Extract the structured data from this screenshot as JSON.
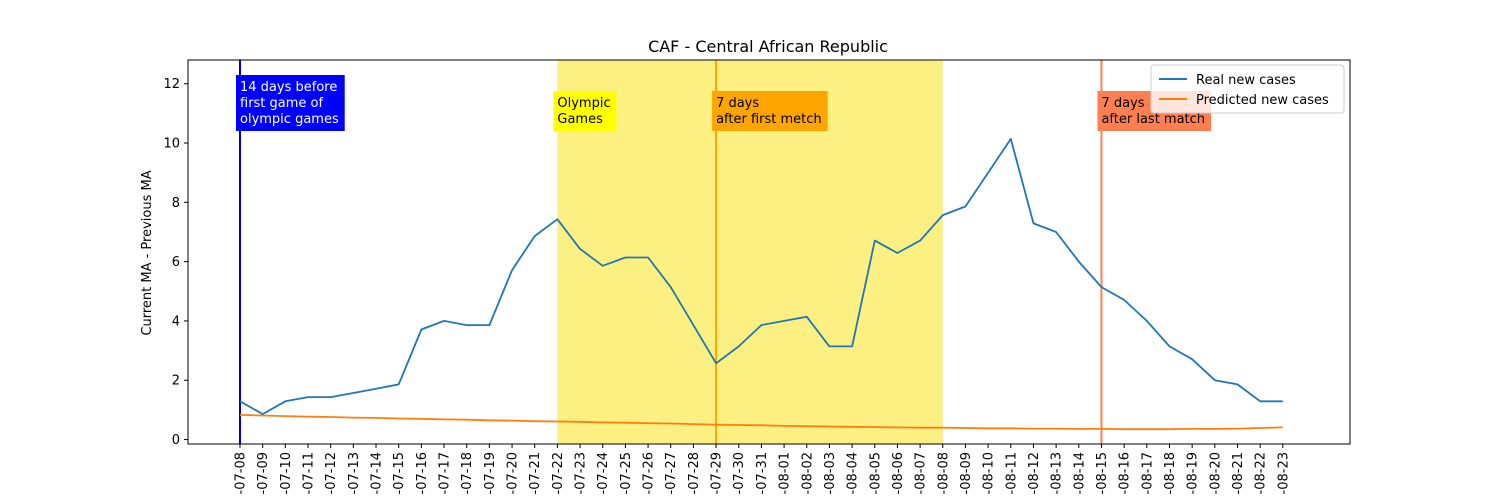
{
  "chart_data": {
    "type": "line",
    "title": "CAF - Central African Republic",
    "xlabel": "",
    "ylabel": "Current MA - Previous MA",
    "x": [
      "2021-07-08",
      "2021-07-09",
      "2021-07-10",
      "2021-07-11",
      "2021-07-12",
      "2021-07-13",
      "2021-07-14",
      "2021-07-15",
      "2021-07-16",
      "2021-07-17",
      "2021-07-18",
      "2021-07-19",
      "2021-07-20",
      "2021-07-21",
      "2021-07-22",
      "2021-07-23",
      "2021-07-24",
      "2021-07-25",
      "2021-07-26",
      "2021-07-27",
      "2021-07-28",
      "2021-07-29",
      "2021-07-30",
      "2021-07-31",
      "2021-08-01",
      "2021-08-02",
      "2021-08-03",
      "2021-08-04",
      "2021-08-05",
      "2021-08-06",
      "2021-08-07",
      "2021-08-08",
      "2021-08-09",
      "2021-08-10",
      "2021-08-11",
      "2021-08-12",
      "2021-08-13",
      "2021-08-14",
      "2021-08-15",
      "2021-08-16",
      "2021-08-17",
      "2021-08-18",
      "2021-08-19",
      "2021-08-20",
      "2021-08-21",
      "2021-08-22",
      "2021-08-23"
    ],
    "tick_labels": [
      "-07-08",
      "-07-09",
      "-07-10",
      "-07-11",
      "-07-12",
      "-07-13",
      "-07-14",
      "-07-15",
      "-07-16",
      "-07-17",
      "-07-18",
      "-07-19",
      "-07-20",
      "-07-21",
      "-07-22",
      "-07-23",
      "-07-24",
      "-07-25",
      "-07-26",
      "-07-27",
      "-07-28",
      "-07-29",
      "-07-30",
      "-07-31",
      "-08-01",
      "-08-02",
      "-08-03",
      "-08-04",
      "-08-05",
      "-08-06",
      "-08-07",
      "-08-08",
      "-08-09",
      "-08-10",
      "-08-11",
      "-08-12",
      "-08-13",
      "-08-14",
      "-08-15",
      "-08-16",
      "-08-17",
      "-08-18",
      "-08-19",
      "-08-20",
      "-08-21",
      "-08-22",
      "-08-23"
    ],
    "series": [
      {
        "name": "Real new cases",
        "color": "#1f77b4",
        "values": [
          1.29,
          0.86,
          1.29,
          1.43,
          1.43,
          1.57,
          1.71,
          1.86,
          3.71,
          4.0,
          3.86,
          3.86,
          5.71,
          6.86,
          7.43,
          6.43,
          5.86,
          6.14,
          6.14,
          5.14,
          3.86,
          2.57,
          3.14,
          3.86,
          4.0,
          4.14,
          3.14,
          3.14,
          6.71,
          6.29,
          6.71,
          7.57,
          7.86,
          9.0,
          10.14,
          7.29,
          7.0,
          6.0,
          5.14,
          4.71,
          4.0,
          3.14,
          2.71,
          2.0,
          1.86,
          1.29,
          1.29
        ]
      },
      {
        "name": "Predicted new cases",
        "color": "#ff7f0e",
        "values": [
          0.83,
          0.81,
          0.79,
          0.77,
          0.76,
          0.74,
          0.73,
          0.71,
          0.7,
          0.68,
          0.67,
          0.65,
          0.64,
          0.62,
          0.61,
          0.6,
          0.58,
          0.57,
          0.55,
          0.54,
          0.52,
          0.5,
          0.49,
          0.48,
          0.46,
          0.45,
          0.44,
          0.43,
          0.42,
          0.41,
          0.4,
          0.4,
          0.39,
          0.38,
          0.38,
          0.37,
          0.37,
          0.36,
          0.36,
          0.35,
          0.35,
          0.35,
          0.36,
          0.36,
          0.37,
          0.39,
          0.41
        ]
      }
    ],
    "ylim": [
      -0.15,
      12.8
    ],
    "yticks": [
      0,
      2,
      4,
      6,
      8,
      10,
      12
    ],
    "shaded_region": {
      "start": "2021-07-22",
      "end": "2021-08-08",
      "color": "#fdf083"
    },
    "vlines": [
      {
        "x": "2021-07-08",
        "color": "#0000cc"
      },
      {
        "x": "2021-07-29",
        "color": "#ffa500"
      },
      {
        "x": "2021-08-15",
        "color": "#ff7f50"
      }
    ],
    "annotations": [
      {
        "x": "2021-07-08",
        "lines": [
          "14 days before",
          "first game of",
          "olympic games"
        ],
        "bg": "#0000ff",
        "fg": "#ffffff",
        "row": 0
      },
      {
        "x": "2021-07-22",
        "lines": [
          "Olympic",
          "Games"
        ],
        "bg": "#ffff00",
        "fg": "#000000",
        "row": 1
      },
      {
        "x": "2021-07-29",
        "lines": [
          "7 days",
          "after first metch"
        ],
        "bg": "#ffa500",
        "fg": "#000000",
        "row": 1
      },
      {
        "x": "2021-08-15",
        "lines": [
          "7 days",
          "after last match"
        ],
        "bg": "#ff7f50",
        "fg": "#000000",
        "row": 1
      }
    ],
    "grid": false,
    "legend_position": "top-right"
  }
}
